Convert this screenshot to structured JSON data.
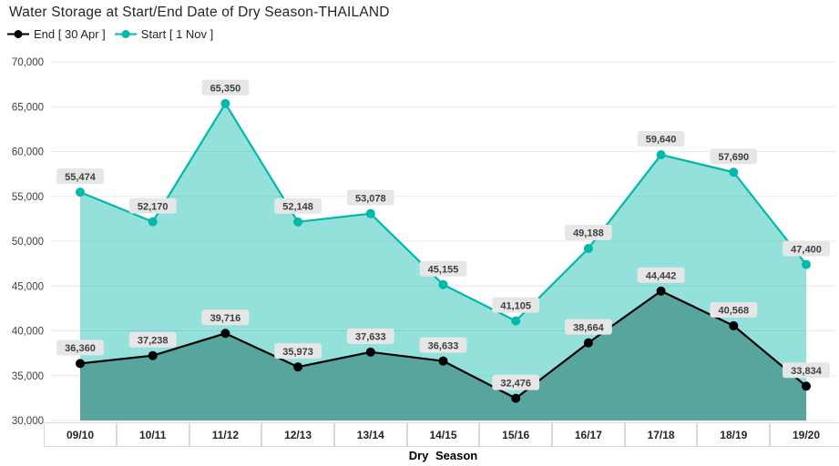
{
  "chart": {
    "title": "Water Storage at Start/End Date of Dry Season-THAILAND",
    "x_axis_title": "Dry Season"
  },
  "chart_data": {
    "type": "area",
    "title": "Water Storage at Start/End Date of Dry Season-THAILAND",
    "xlabel": "Dry Season",
    "ylabel": "",
    "categories": [
      "09/10",
      "10/11",
      "11/12",
      "12/13",
      "13/14",
      "14/15",
      "15/16",
      "16/17",
      "17/18",
      "18/19",
      "19/20"
    ],
    "series": [
      {
        "key": "end",
        "name": "End [ 30 Apr ]",
        "color": "#000000",
        "fill": "#57a59d",
        "values": [
          36360,
          37238,
          39716,
          35973,
          37633,
          36633,
          32476,
          38664,
          44442,
          40568,
          33834
        ]
      },
      {
        "key": "start",
        "name": "Start [ 1 Nov ]",
        "color": "#01b8aa",
        "fill": "rgba(1,184,170,0.42)",
        "values": [
          55474,
          52170,
          65350,
          52148,
          53078,
          45155,
          41105,
          49188,
          59640,
          57690,
          47400
        ]
      }
    ],
    "ylim": [
      30000,
      70000
    ],
    "ytick_step": 5000,
    "ytick_labels": [
      "30,000",
      "35,000",
      "40,000",
      "45,000",
      "50,000",
      "55,000",
      "60,000",
      "65,000",
      "70,000"
    ],
    "grid": true,
    "legend_position": "top-left",
    "colors": {
      "gridline": "#e9e9e9",
      "axis_tick_text": "#404040",
      "data_label_background": "#e6e6e6",
      "data_label_text": "#404040"
    }
  }
}
